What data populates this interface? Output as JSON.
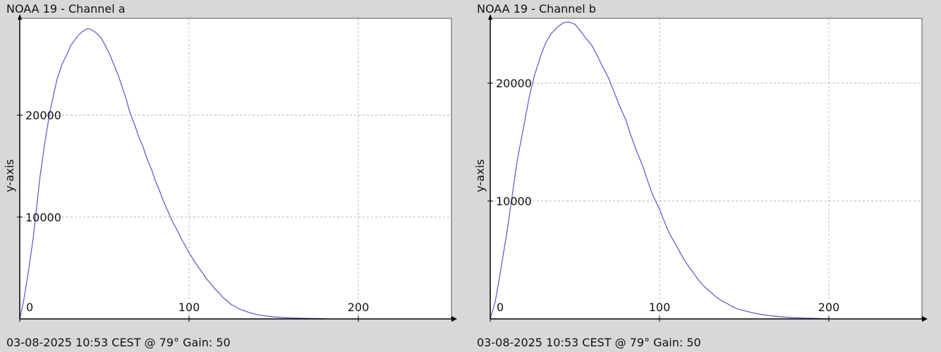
{
  "chart_data": [
    {
      "type": "line",
      "title": "NOAA 19 - Channel a",
      "footer": "03-08-2025 10:53 CEST @ 79° Gain: 50",
      "ylabel": "y-axis",
      "xlim": [
        0,
        255
      ],
      "ylim": [
        0,
        29500
      ],
      "x_ticks": [
        0,
        100,
        200
      ],
      "y_ticks": [
        10000,
        20000
      ],
      "grid": true,
      "line_color": "#5555cc",
      "series": [
        {
          "x": [
            0,
            2,
            5,
            8,
            10,
            12,
            15,
            18,
            20,
            22,
            25,
            28,
            30,
            33,
            35,
            37,
            40,
            42,
            45,
            48,
            50,
            53,
            55,
            58,
            60,
            63,
            65,
            68,
            70,
            73,
            75,
            78,
            80,
            83,
            85,
            88,
            90,
            93,
            95,
            98,
            100,
            103,
            105,
            108,
            110,
            113,
            115,
            118,
            120,
            123,
            125,
            128,
            130,
            133,
            135,
            138,
            140,
            143,
            145,
            148,
            150,
            155,
            160,
            165,
            170,
            175,
            180
          ],
          "y": [
            0,
            1500,
            4500,
            8000,
            11000,
            14000,
            17500,
            20500,
            22000,
            23500,
            25000,
            26000,
            26800,
            27500,
            27900,
            28200,
            28500,
            28400,
            28100,
            27600,
            27000,
            26000,
            25200,
            24000,
            23000,
            21500,
            20300,
            19000,
            18000,
            16800,
            15800,
            14600,
            13600,
            12400,
            11500,
            10400,
            9600,
            8700,
            8000,
            7100,
            6500,
            5700,
            5200,
            4500,
            4000,
            3400,
            3000,
            2500,
            2100,
            1700,
            1400,
            1150,
            950,
            780,
            650,
            520,
            430,
            350,
            290,
            240,
            200,
            140,
            100,
            70,
            50,
            35,
            25
          ]
        }
      ]
    },
    {
      "type": "line",
      "title": "NOAA 19 - Channel b",
      "footer": "03-08-2025 10:53 CEST @ 79° Gain: 50",
      "ylabel": "y-axis",
      "xlim": [
        0,
        255
      ],
      "ylim": [
        0,
        25500
      ],
      "x_ticks": [
        0,
        100,
        200
      ],
      "y_ticks": [
        10000,
        20000
      ],
      "grid": true,
      "line_color": "#5555cc",
      "series": [
        {
          "x": [
            0,
            3,
            6,
            10,
            13,
            16,
            20,
            23,
            26,
            30,
            33,
            36,
            40,
            43,
            46,
            50,
            53,
            56,
            60,
            63,
            66,
            70,
            73,
            76,
            80,
            83,
            86,
            90,
            93,
            96,
            100,
            103,
            106,
            110,
            113,
            116,
            120,
            123,
            126,
            130,
            133,
            136,
            140,
            143,
            146,
            150,
            155,
            160,
            165,
            170,
            175,
            180,
            185,
            190,
            195,
            200
          ],
          "y": [
            0,
            1500,
            4000,
            7500,
            10500,
            13500,
            16500,
            18800,
            20600,
            22400,
            23500,
            24200,
            24800,
            25100,
            25200,
            25000,
            24500,
            23900,
            23200,
            22400,
            21500,
            20400,
            19300,
            18200,
            16900,
            15600,
            14400,
            13000,
            11700,
            10500,
            9300,
            8200,
            7200,
            6200,
            5400,
            4700,
            3900,
            3300,
            2800,
            2300,
            1900,
            1600,
            1300,
            1050,
            850,
            700,
            520,
            380,
            280,
            200,
            140,
            100,
            70,
            50,
            30,
            20
          ]
        }
      ]
    }
  ]
}
